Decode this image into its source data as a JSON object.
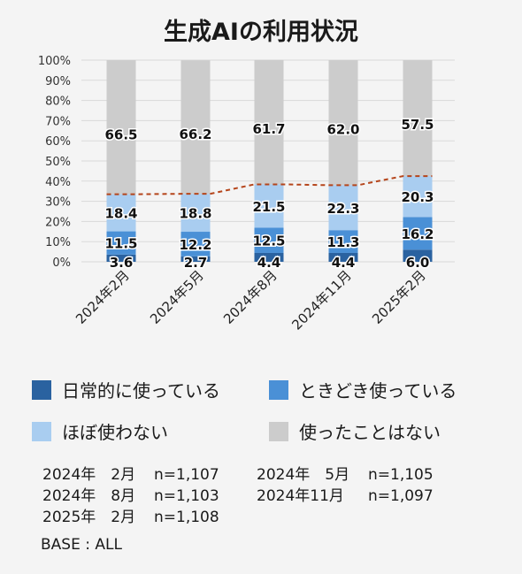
{
  "chart_data": {
    "type": "bar",
    "stacked": true,
    "title": "生成AIの利用状況",
    "categories": [
      "2024年2月",
      "2024年5月",
      "2024年8月",
      "2024年11月",
      "2025年2月"
    ],
    "series": [
      {
        "name": "日常的に使っている",
        "values": [
          3.6,
          2.7,
          4.4,
          4.4,
          6.0
        ],
        "color": "#2a62a0"
      },
      {
        "name": "ときどき使っている",
        "values": [
          11.5,
          12.2,
          12.5,
          11.3,
          16.2
        ],
        "color": "#4a90d6"
      },
      {
        "name": "ほぼ使わない",
        "values": [
          18.4,
          18.8,
          21.5,
          22.3,
          20.3
        ],
        "color": "#a9cdf0"
      },
      {
        "name": "使ったことはない",
        "values": [
          66.5,
          66.2,
          61.7,
          62.0,
          57.5
        ],
        "color": "#cccccc"
      }
    ],
    "y_ticks": [
      "0%",
      "10%",
      "20%",
      "30%",
      "40%",
      "50%",
      "60%",
      "70%",
      "80%",
      "90%",
      "100%"
    ],
    "ylim": [
      0,
      100
    ],
    "grid": true,
    "line_color": "#b5451b"
  },
  "sample_sizes": [
    {
      "period": "2024年　2月",
      "n": "n=1,107"
    },
    {
      "period": "2024年　5月",
      "n": "n=1,105"
    },
    {
      "period": "2024年　8月",
      "n": "n=1,103"
    },
    {
      "period": "2024年11月",
      "n": "n=1,097"
    },
    {
      "period": "2025年　2月",
      "n": "n=1,108"
    }
  ],
  "base_note": "BASE : ALL"
}
